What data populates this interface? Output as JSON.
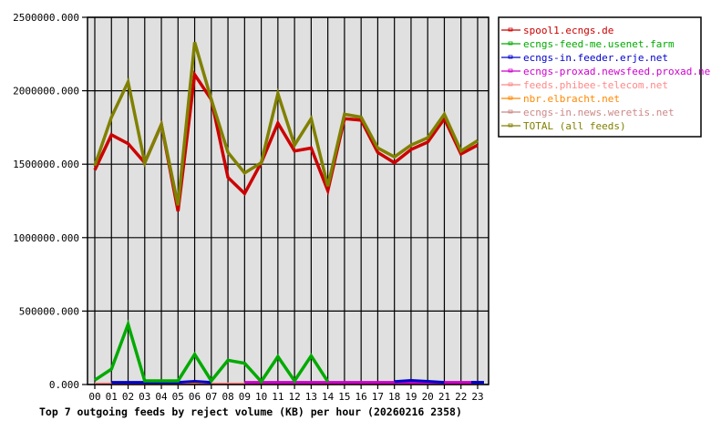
{
  "chart_data": {
    "type": "line",
    "title": "Top 7 outgoing feeds by reject volume (KB) per hour (20260216 2358)",
    "xlabel": "",
    "ylabel": "",
    "ylim": [
      0,
      2500000
    ],
    "yticks": [
      "0.000",
      "500000.000",
      "1000000.000",
      "1500000.000",
      "2000000.000",
      "2500000.000"
    ],
    "ytick_values": [
      0,
      500000,
      1000000,
      1500000,
      2000000,
      2500000
    ],
    "grid": true,
    "legend_position": "right",
    "categories": [
      "00",
      "01",
      "02",
      "03",
      "04",
      "05",
      "06",
      "07",
      "08",
      "09",
      "10",
      "11",
      "12",
      "13",
      "14",
      "15",
      "16",
      "17",
      "18",
      "19",
      "20",
      "21",
      "22",
      "23"
    ],
    "series": [
      {
        "name": "spool1.ecngs.de",
        "color": "#cc0000",
        "values": [
          1460000,
          1700000,
          1640000,
          1510000,
          1770000,
          1180000,
          2110000,
          1940000,
          1410000,
          1300000,
          1510000,
          1780000,
          1590000,
          1610000,
          1320000,
          1810000,
          1800000,
          1580000,
          1510000,
          1600000,
          1650000,
          1810000,
          1570000,
          1630000
        ]
      },
      {
        "name": "ecngs-feed-me.usenet.farm",
        "color": "#00aa00",
        "values": [
          30000,
          105000,
          410000,
          25000,
          25000,
          25000,
          205000,
          25000,
          165000,
          145000,
          20000,
          190000,
          25000,
          195000,
          20000,
          null,
          null,
          null,
          null,
          null,
          null,
          null,
          null,
          null
        ]
      },
      {
        "name": "ecngs-in.feeder.erje.net",
        "color": "#0000cc",
        "values": [
          null,
          15000,
          15000,
          15000,
          15000,
          15000,
          22000,
          15000,
          null,
          null,
          null,
          null,
          null,
          null,
          null,
          null,
          null,
          null,
          20000,
          28000,
          22000,
          15000,
          null,
          15000
        ]
      },
      {
        "name": "ecngs-proxad.newsfeed.proxad.net",
        "color": "#cc00cc",
        "values": [
          null,
          null,
          null,
          null,
          null,
          null,
          null,
          null,
          null,
          15000,
          15000,
          15000,
          15000,
          15000,
          15000,
          15000,
          15000,
          15000,
          15000,
          15000,
          15000,
          15000,
          15000,
          15000
        ]
      },
      {
        "name": "feeds.phibee-telecom.net",
        "color": "#ff8888",
        "values": [
          5000,
          5000,
          5000,
          5000,
          5000,
          5000,
          5000,
          5000,
          5000,
          5000,
          5000,
          5000,
          5000,
          5000,
          5000,
          5000,
          5000,
          5000,
          5000,
          5000,
          5000,
          5000,
          5000,
          5000
        ]
      },
      {
        "name": "nbr.elbracht.net",
        "color": "#ff8800",
        "values": [
          null,
          null,
          null,
          null,
          null,
          null,
          8000,
          null,
          null,
          null,
          8000,
          null,
          null,
          null,
          8000,
          null,
          null,
          null,
          null,
          null,
          null,
          null,
          null,
          null
        ]
      },
      {
        "name": "ecngs-in.news.weretis.net",
        "color": "#cc8888",
        "values": [
          3000,
          3000,
          3000,
          3000,
          3000,
          3000,
          3000,
          3000,
          3000,
          3000,
          3000,
          3000,
          3000,
          3000,
          3000,
          3000,
          3000,
          3000,
          3000,
          3000,
          3000,
          3000,
          3000,
          3000
        ]
      },
      {
        "name": "TOTAL (all feeds)",
        "color": "#808000",
        "values": [
          1490000,
          1820000,
          2060000,
          1510000,
          1770000,
          1220000,
          2330000,
          1940000,
          1580000,
          1440000,
          1510000,
          1980000,
          1630000,
          1810000,
          1350000,
          1840000,
          1820000,
          1610000,
          1550000,
          1630000,
          1680000,
          1840000,
          1590000,
          1660000
        ]
      }
    ]
  },
  "colors": {
    "plot_background": "#e0e0e0",
    "grid": "#000000",
    "axis": "#000000"
  }
}
